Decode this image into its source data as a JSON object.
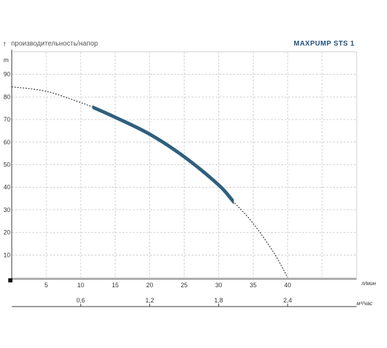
{
  "header": {
    "y_caption": "производительность/напор",
    "product": "MAXPUMP STS 1"
  },
  "chart_data": {
    "type": "line",
    "y_unit": "m",
    "x_unit_primary": "л/мин",
    "x_unit_secondary": "м³/час",
    "ylim": [
      0,
      100
    ],
    "xlim": [
      0,
      50
    ],
    "y_ticks": [
      "10",
      "20",
      "30",
      "40",
      "50",
      "60",
      "70",
      "80",
      "90"
    ],
    "x_ticks_primary": [
      "5",
      "10",
      "15",
      "20",
      "25",
      "30",
      "35",
      "40"
    ],
    "x_ticks_secondary": [
      {
        "label": "0,6",
        "x": 10
      },
      {
        "label": "1,2",
        "x": 20
      },
      {
        "label": "1,8",
        "x": 30
      },
      {
        "label": "2,4",
        "x": 40
      }
    ],
    "grid": true,
    "curve_color": "#2f5f7f",
    "series": [
      {
        "x": [
          0,
          5,
          10,
          11.7,
          15,
          20,
          25,
          30,
          32.2,
          35,
          38,
          40
        ],
        "y": [
          84.5,
          82.5,
          77.5,
          75.5,
          71,
          63.5,
          53.5,
          41,
          33.5,
          24,
          11,
          0
        ],
        "working_range": [
          11.7,
          32.2
        ]
      }
    ]
  }
}
